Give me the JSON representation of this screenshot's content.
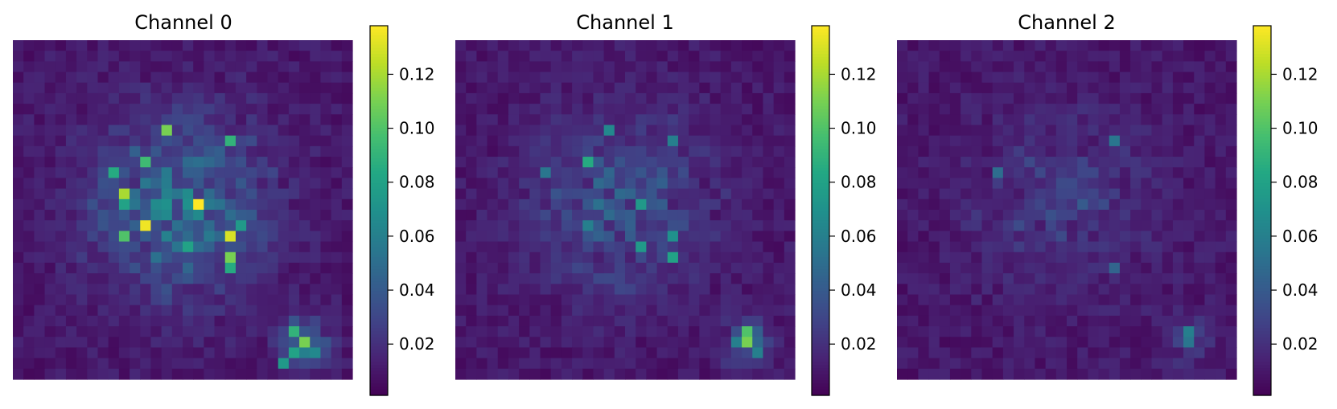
{
  "chart_data": [
    {
      "type": "heatmap",
      "title": "Channel 0",
      "rows": 32,
      "cols": 32,
      "colormap": "viridis",
      "vmin": 0.001,
      "vmax": 0.138,
      "colorbar_ticks": [
        "0.02",
        "0.04",
        "0.06",
        "0.08",
        "0.10",
        "0.12"
      ],
      "colorbar_tick_values": [
        0.02,
        0.04,
        0.06,
        0.08,
        0.1,
        0.12
      ],
      "hotspots": [
        {
          "row": 8,
          "col": 14,
          "value": 0.11
        },
        {
          "row": 9,
          "col": 20,
          "value": 0.09
        },
        {
          "row": 11,
          "col": 12,
          "value": 0.095
        },
        {
          "row": 12,
          "col": 9,
          "value": 0.085
        },
        {
          "row": 14,
          "col": 10,
          "value": 0.12
        },
        {
          "row": 15,
          "col": 17,
          "value": 0.138
        },
        {
          "row": 15,
          "col": 10,
          "value": 0.08
        },
        {
          "row": 17,
          "col": 12,
          "value": 0.135
        },
        {
          "row": 18,
          "col": 10,
          "value": 0.1
        },
        {
          "row": 18,
          "col": 20,
          "value": 0.13
        },
        {
          "row": 19,
          "col": 16,
          "value": 0.08
        },
        {
          "row": 20,
          "col": 20,
          "value": 0.11
        },
        {
          "row": 21,
          "col": 20,
          "value": 0.085
        },
        {
          "row": 17,
          "col": 21,
          "value": 0.075
        },
        {
          "row": 27,
          "col": 26,
          "value": 0.09
        },
        {
          "row": 28,
          "col": 27,
          "value": 0.11
        },
        {
          "row": 29,
          "col": 26,
          "value": 0.08
        },
        {
          "row": 30,
          "col": 25,
          "value": 0.075
        },
        {
          "row": 29,
          "col": 28,
          "value": 0.065
        }
      ]
    },
    {
      "type": "heatmap",
      "title": "Channel 1",
      "rows": 32,
      "cols": 32,
      "colormap": "viridis",
      "vmin": 0.001,
      "vmax": 0.138,
      "colorbar_ticks": [
        "0.02",
        "0.04",
        "0.06",
        "0.08",
        "0.10",
        "0.12"
      ],
      "colorbar_tick_values": [
        0.02,
        0.04,
        0.06,
        0.08,
        0.1,
        0.12
      ],
      "hotspots": [
        {
          "row": 8,
          "col": 14,
          "value": 0.065
        },
        {
          "row": 9,
          "col": 20,
          "value": 0.06
        },
        {
          "row": 11,
          "col": 12,
          "value": 0.085
        },
        {
          "row": 12,
          "col": 8,
          "value": 0.055
        },
        {
          "row": 15,
          "col": 17,
          "value": 0.075
        },
        {
          "row": 17,
          "col": 12,
          "value": 0.06
        },
        {
          "row": 18,
          "col": 20,
          "value": 0.07
        },
        {
          "row": 19,
          "col": 17,
          "value": 0.075
        },
        {
          "row": 20,
          "col": 20,
          "value": 0.08
        },
        {
          "row": 27,
          "col": 27,
          "value": 0.1
        },
        {
          "row": 28,
          "col": 27,
          "value": 0.11
        },
        {
          "row": 28,
          "col": 26,
          "value": 0.06
        },
        {
          "row": 29,
          "col": 28,
          "value": 0.06
        }
      ]
    },
    {
      "type": "heatmap",
      "title": "Channel 2",
      "rows": 32,
      "cols": 32,
      "colormap": "viridis",
      "vmin": 0.001,
      "vmax": 0.138,
      "colorbar_ticks": [
        "0.02",
        "0.04",
        "0.06",
        "0.08",
        "0.10",
        "0.12"
      ],
      "colorbar_tick_values": [
        0.02,
        0.04,
        0.06,
        0.08,
        0.1,
        0.12
      ],
      "hotspots": [
        {
          "row": 9,
          "col": 20,
          "value": 0.055
        },
        {
          "row": 12,
          "col": 9,
          "value": 0.05
        },
        {
          "row": 15,
          "col": 17,
          "value": 0.04
        },
        {
          "row": 21,
          "col": 20,
          "value": 0.045
        },
        {
          "row": 27,
          "col": 27,
          "value": 0.06
        },
        {
          "row": 28,
          "col": 27,
          "value": 0.055
        }
      ]
    }
  ]
}
